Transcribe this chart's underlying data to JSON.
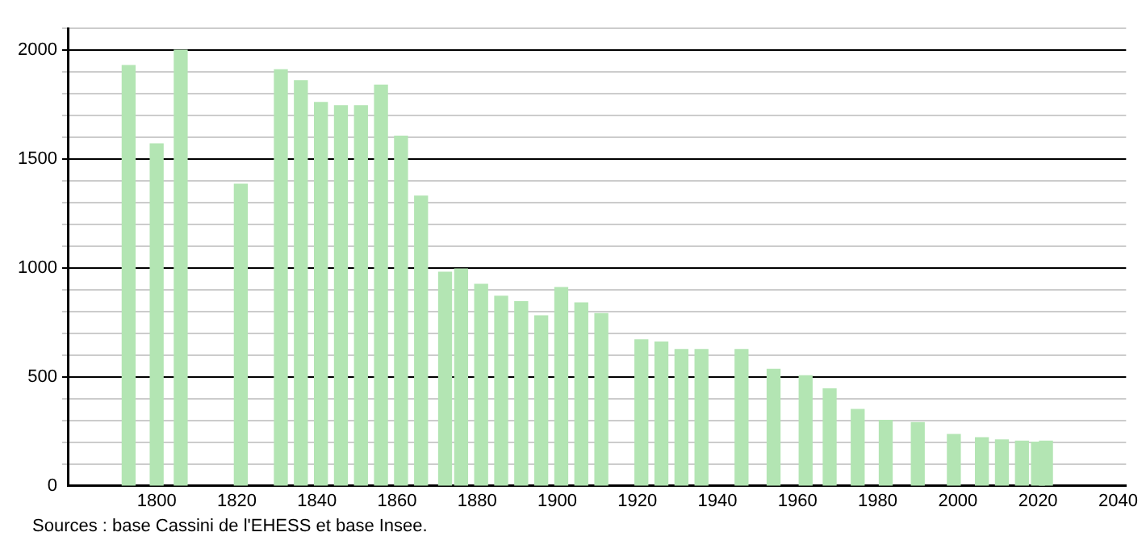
{
  "chart_data": {
    "type": "bar",
    "x": [
      1793,
      1800,
      1806,
      1821,
      1831,
      1836,
      1841,
      1846,
      1851,
      1856,
      1861,
      1866,
      1872,
      1876,
      1881,
      1886,
      1891,
      1896,
      1901,
      1906,
      1911,
      1921,
      1926,
      1931,
      1936,
      1946,
      1954,
      1962,
      1968,
      1975,
      1982,
      1990,
      1999,
      2006,
      2011,
      2016,
      2020,
      2022
    ],
    "values": [
      1930,
      1570,
      2000,
      1385,
      1910,
      1860,
      1760,
      1745,
      1745,
      1840,
      1605,
      1330,
      980,
      995,
      925,
      870,
      845,
      780,
      910,
      840,
      790,
      670,
      660,
      625,
      625,
      625,
      535,
      505,
      445,
      350,
      300,
      290,
      235,
      220,
      210,
      205,
      200,
      205
    ],
    "color": "#b3e5b3",
    "xlim": [
      1778,
      2042
    ],
    "xticks": [
      1800,
      1820,
      1840,
      1860,
      1880,
      1900,
      1920,
      1940,
      1960,
      1980,
      2000,
      2020,
      2040
    ],
    "ylim": [
      0,
      2100
    ],
    "yticks": [
      0,
      {
        "value": 100,
        "label": null
      },
      {
        "value": 200,
        "label": null
      },
      {
        "value": 300,
        "label": null
      },
      {
        "value": 400,
        "label": null
      },
      500,
      {
        "value": 600,
        "label": null
      },
      {
        "value": 700,
        "label": null
      },
      {
        "value": 800,
        "label": null
      },
      {
        "value": 900,
        "label": null
      },
      1000,
      {
        "value": 1100,
        "label": null
      },
      {
        "value": 1200,
        "label": null
      },
      {
        "value": 1300,
        "label": null
      },
      {
        "value": 1400,
        "label": null
      },
      1500,
      {
        "value": 1600,
        "label": null
      },
      {
        "value": 1700,
        "label": null
      },
      {
        "value": 1800,
        "label": null
      },
      {
        "value": 1900,
        "label": null
      },
      2000,
      {
        "value": 2100,
        "label": null
      }
    ],
    "grid": "y",
    "legend": false,
    "annotations": [
      "Sources : base Cassini de l'EHESS et base Insee."
    ]
  }
}
